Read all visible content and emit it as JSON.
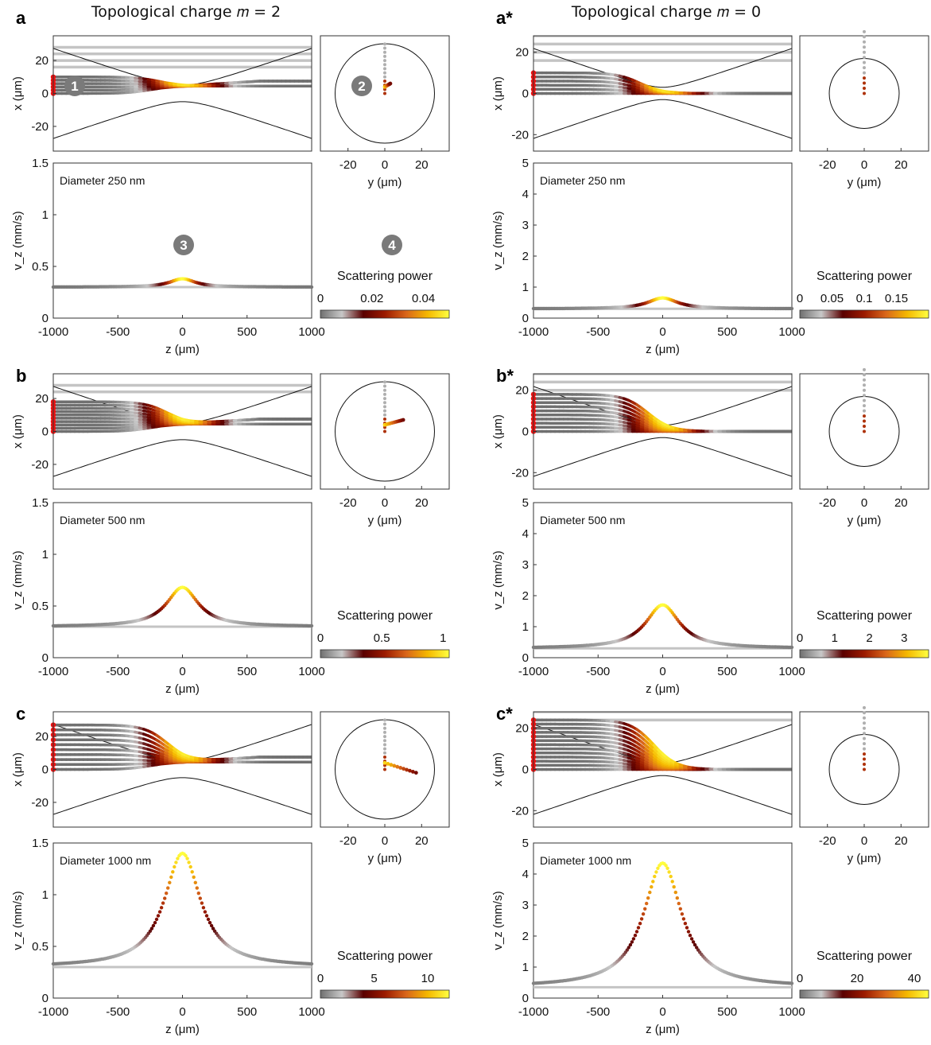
{
  "column_titles": {
    "left": "Topological charge 𝑚 = 2",
    "right": "Topological charge 𝑚 = 0"
  },
  "markers": [
    "1",
    "2",
    "3",
    "4"
  ],
  "colormap": {
    "name": "scattering power",
    "stops": [
      "#707070",
      "#c8c8c8",
      "#5a0000",
      "#9b1a00",
      "#d9661a",
      "#f5b800",
      "#ffff40"
    ]
  },
  "chart_data": [
    {
      "id": "a",
      "label": "a",
      "charge": 2,
      "type": "line",
      "diameter_label": "Diameter 250 nm",
      "xz": {
        "xlabel": "z (μm)",
        "ylabel": "x (μm)",
        "xlim": [
          -1000,
          1000
        ],
        "ylim": [
          -35,
          35
        ],
        "yticks": [
          -20,
          0,
          20
        ],
        "trajectory_starts_x_um": [
          0,
          2,
          4,
          6,
          8,
          10
        ],
        "parallel_lines_x_um": [
          16,
          20,
          24,
          28
        ],
        "focal_envelope_waist_um": 5
      },
      "xy": {
        "xlabel": "y (μm)",
        "xlim": [
          -35,
          35
        ],
        "ylim": [
          -35,
          35
        ],
        "xticks": [
          -20,
          0,
          20
        ],
        "circle_radius_um": 27,
        "displacement_end_um": [
          3,
          6
        ]
      },
      "vz": {
        "xlabel": "z (μm)",
        "ylabel": "v_z (mm/s)",
        "xlim": [
          -1000,
          1000
        ],
        "ylim": [
          0,
          1.5
        ],
        "xticks": [
          -1000,
          -500,
          0,
          500,
          1000
        ],
        "yticks": [
          0,
          0.5,
          1,
          1.5
        ],
        "baseline": 0.3,
        "peak": 0.38,
        "peak_z": 0,
        "width": 120
      },
      "colorbar": {
        "title": "Scattering power",
        "min": 0,
        "max": 0.05,
        "ticks": [
          "0",
          "0.02",
          "0.04"
        ]
      }
    },
    {
      "id": "a*",
      "label": "a*",
      "charge": 0,
      "type": "line",
      "diameter_label": "Diameter 250 nm",
      "xz": {
        "xlabel": "z (μm)",
        "ylabel": "x (μm)",
        "xlim": [
          -1000,
          1000
        ],
        "ylim": [
          -28,
          28
        ],
        "yticks": [
          -20,
          0,
          20
        ],
        "trajectory_starts_x_um": [
          0,
          2,
          4,
          6,
          8,
          10
        ],
        "parallel_lines_x_um": [
          16,
          20,
          24,
          28
        ],
        "focal_envelope_waist_um": 3
      },
      "xy": {
        "xlabel": "y (μm)",
        "xlim": [
          -35,
          35
        ],
        "ylim": [
          -28,
          28
        ],
        "xticks": [
          -20,
          0,
          20
        ],
        "circle_radius_um": 19,
        "displacement_end_um": [
          0,
          0
        ]
      },
      "vz": {
        "xlabel": "z (μm)",
        "ylabel": "v_z (mm/s)",
        "xlim": [
          -1000,
          1000
        ],
        "ylim": [
          0,
          5
        ],
        "xticks": [
          -1000,
          -500,
          0,
          500,
          1000
        ],
        "yticks": [
          0,
          1,
          2,
          3,
          4,
          5
        ],
        "baseline": 0.3,
        "peak": 0.65,
        "peak_z": 0,
        "width": 140
      },
      "colorbar": {
        "title": "Scattering power",
        "min": 0,
        "max": 0.2,
        "ticks": [
          "0",
          "0.05",
          "0.1",
          "0.15"
        ]
      }
    },
    {
      "id": "b",
      "label": "b",
      "charge": 2,
      "type": "line",
      "diameter_label": "Diameter 500 nm",
      "xz": {
        "xlabel": "z (μm)",
        "ylabel": "x (μm)",
        "xlim": [
          -1000,
          1000
        ],
        "ylim": [
          -35,
          35
        ],
        "yticks": [
          -20,
          0,
          20
        ],
        "trajectory_starts_x_um": [
          0,
          2,
          4,
          6,
          8,
          10,
          12,
          14,
          16,
          18
        ],
        "parallel_lines_x_um": [
          24,
          28
        ],
        "focal_envelope_waist_um": 5
      },
      "xy": {
        "xlabel": "y (μm)",
        "xlim": [
          -35,
          35
        ],
        "ylim": [
          -35,
          35
        ],
        "xticks": [
          -20,
          0,
          20
        ],
        "circle_radius_um": 27,
        "displacement_end_um": [
          10,
          7
        ]
      },
      "vz": {
        "xlabel": "z (μm)",
        "ylabel": "v_z (mm/s)",
        "xlim": [
          -1000,
          1000
        ],
        "ylim": [
          0,
          1.5
        ],
        "xticks": [
          -1000,
          -500,
          0,
          500,
          1000
        ],
        "yticks": [
          0,
          0.5,
          1,
          1.5
        ],
        "baseline": 0.3,
        "peak": 0.68,
        "peak_z": 0,
        "width": 150
      },
      "colorbar": {
        "title": "Scattering power",
        "min": 0,
        "max": 1.05,
        "ticks": [
          "0",
          "0.5",
          "1"
        ]
      }
    },
    {
      "id": "b*",
      "label": "b*",
      "charge": 0,
      "type": "line",
      "diameter_label": "Diameter 500 nm",
      "xz": {
        "xlabel": "z (μm)",
        "ylabel": "x (μm)",
        "xlim": [
          -1000,
          1000
        ],
        "ylim": [
          -28,
          28
        ],
        "yticks": [
          -20,
          0,
          20
        ],
        "trajectory_starts_x_um": [
          0,
          2,
          4,
          6,
          8,
          10,
          12,
          14,
          16,
          18
        ],
        "parallel_lines_x_um": [
          20,
          24,
          28
        ],
        "focal_envelope_waist_um": 3
      },
      "xy": {
        "xlabel": "y (μm)",
        "xlim": [
          -35,
          35
        ],
        "ylim": [
          -28,
          28
        ],
        "xticks": [
          -20,
          0,
          20
        ],
        "circle_radius_um": 19,
        "displacement_end_um": [
          0,
          0
        ]
      },
      "vz": {
        "xlabel": "z (μm)",
        "ylabel": "v_z (mm/s)",
        "xlim": [
          -1000,
          1000
        ],
        "ylim": [
          0,
          5
        ],
        "xticks": [
          -1000,
          -500,
          0,
          500,
          1000
        ],
        "yticks": [
          0,
          1,
          2,
          3,
          4,
          5
        ],
        "baseline": 0.3,
        "peak": 1.7,
        "peak_z": 0,
        "width": 160
      },
      "colorbar": {
        "title": "Scattering power",
        "min": 0,
        "max": 3.7,
        "ticks": [
          "0",
          "1",
          "2",
          "3"
        ]
      }
    },
    {
      "id": "c",
      "label": "c",
      "charge": 2,
      "type": "line",
      "diameter_label": "Diameter 1000 nm",
      "xz": {
        "xlabel": "z (μm)",
        "ylabel": "x (μm)",
        "xlim": [
          -1000,
          1000
        ],
        "ylim": [
          -35,
          35
        ],
        "yticks": [
          -20,
          0,
          20
        ],
        "trajectory_starts_x_um": [
          0,
          3,
          6,
          9,
          12,
          15,
          18,
          21,
          24,
          27
        ],
        "parallel_lines_x_um": [],
        "focal_envelope_waist_um": 5
      },
      "xy": {
        "xlabel": "y (μm)",
        "xlim": [
          -35,
          35
        ],
        "ylim": [
          -35,
          35
        ],
        "xticks": [
          -20,
          0,
          20
        ],
        "circle_radius_um": 27,
        "displacement_end_um": [
          17,
          -2
        ]
      },
      "vz": {
        "xlabel": "z (μm)",
        "ylabel": "v_z (mm/s)",
        "xlim": [
          -1000,
          1000
        ],
        "ylim": [
          0,
          1.5
        ],
        "xticks": [
          -1000,
          -500,
          0,
          500,
          1000
        ],
        "yticks": [
          0,
          0.5,
          1,
          1.5
        ],
        "baseline": 0.3,
        "peak": 1.4,
        "peak_z": 0,
        "width": 170
      },
      "colorbar": {
        "title": "Scattering power",
        "min": 0,
        "max": 12,
        "ticks": [
          "0",
          "5",
          "10"
        ]
      }
    },
    {
      "id": "c*",
      "label": "c*",
      "charge": 0,
      "type": "line",
      "diameter_label": "Diameter 1000 nm",
      "xz": {
        "xlabel": "z (μm)",
        "ylabel": "x (μm)",
        "xlim": [
          -1000,
          1000
        ],
        "ylim": [
          -28,
          28
        ],
        "yticks": [
          -20,
          0,
          20
        ],
        "trajectory_starts_x_um": [
          0,
          2,
          4,
          6,
          8,
          10,
          12,
          14,
          16,
          18,
          20,
          22,
          24
        ],
        "parallel_lines_x_um": [
          24,
          28
        ],
        "focal_envelope_waist_um": 3
      },
      "xy": {
        "xlabel": "y (μm)",
        "xlim": [
          -35,
          35
        ],
        "ylim": [
          -28,
          28
        ],
        "xticks": [
          -20,
          0,
          20
        ],
        "circle_radius_um": 19,
        "displacement_end_um": [
          0,
          0
        ]
      },
      "vz": {
        "xlabel": "z (μm)",
        "ylabel": "v_z (mm/s)",
        "xlim": [
          -1000,
          1000
        ],
        "ylim": [
          0,
          5
        ],
        "xticks": [
          -1000,
          -500,
          0,
          500,
          1000
        ],
        "yticks": [
          0,
          1,
          2,
          3,
          4,
          5
        ],
        "baseline": 0.35,
        "peak": 4.35,
        "peak_z": 0,
        "width": 180
      },
      "colorbar": {
        "title": "Scattering power",
        "min": 0,
        "max": 45,
        "ticks": [
          "0",
          "20",
          "40"
        ]
      }
    }
  ]
}
